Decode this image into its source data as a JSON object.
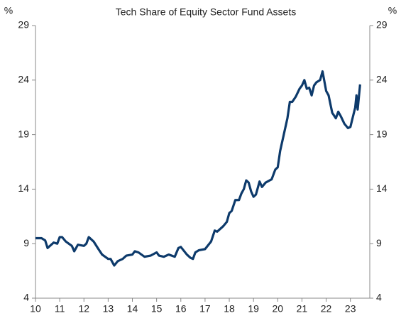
{
  "chart_data": {
    "type": "line",
    "title": "Tech Share of Equity Sector Fund Assets",
    "y_label": "%",
    "x": [
      10.0,
      10.25,
      10.4,
      10.5,
      10.75,
      10.9,
      11.0,
      11.1,
      11.25,
      11.5,
      11.6,
      11.75,
      12.0,
      12.1,
      12.2,
      12.4,
      12.6,
      12.75,
      13.0,
      13.1,
      13.25,
      13.4,
      13.6,
      13.75,
      14.0,
      14.1,
      14.25,
      14.5,
      14.75,
      15.0,
      15.1,
      15.3,
      15.5,
      15.75,
      15.9,
      16.0,
      16.25,
      16.4,
      16.5,
      16.6,
      16.75,
      17.0,
      17.25,
      17.4,
      17.5,
      17.75,
      17.9,
      18.0,
      18.1,
      18.25,
      18.4,
      18.5,
      18.6,
      18.7,
      18.8,
      18.9,
      19.0,
      19.1,
      19.25,
      19.35,
      19.5,
      19.75,
      19.9,
      20.0,
      20.1,
      20.25,
      20.4,
      20.5,
      20.6,
      20.75,
      20.9,
      21.0,
      21.1,
      21.2,
      21.3,
      21.4,
      21.5,
      21.6,
      21.75,
      21.85,
      22.0,
      22.1,
      22.25,
      22.4,
      22.5,
      22.6,
      22.75,
      22.9,
      23.0,
      23.1,
      23.2,
      23.25,
      23.3,
      23.4
    ],
    "series": [
      {
        "name": "Tech share",
        "color": "#0d3a6b",
        "values": [
          9.5,
          9.5,
          9.3,
          8.6,
          9.1,
          9.0,
          9.6,
          9.6,
          9.2,
          8.8,
          8.3,
          8.9,
          8.8,
          9.0,
          9.6,
          9.2,
          8.5,
          8.0,
          7.6,
          7.6,
          7.0,
          7.4,
          7.6,
          7.9,
          8.0,
          8.3,
          8.2,
          7.8,
          7.9,
          8.2,
          7.9,
          7.8,
          8.0,
          7.8,
          8.6,
          8.7,
          8.0,
          7.7,
          7.6,
          8.2,
          8.4,
          8.5,
          9.2,
          10.2,
          10.1,
          10.6,
          11.0,
          11.8,
          12.0,
          13.0,
          13.0,
          13.6,
          14.0,
          14.8,
          14.6,
          13.8,
          13.3,
          13.5,
          14.7,
          14.2,
          14.6,
          14.9,
          15.8,
          16.0,
          17.5,
          19.0,
          20.5,
          22.0,
          22.0,
          22.5,
          23.2,
          23.5,
          24.0,
          23.2,
          23.3,
          22.6,
          23.5,
          23.8,
          24.0,
          24.8,
          23.0,
          22.6,
          21.0,
          20.5,
          21.1,
          20.7,
          20.0,
          19.6,
          19.7,
          20.6,
          21.5,
          22.6,
          21.3,
          23.6
        ]
      }
    ],
    "xlim": [
      10,
      23.8
    ],
    "xticks": [
      10,
      11,
      12,
      13,
      14,
      15,
      16,
      17,
      18,
      19,
      20,
      21,
      22,
      23
    ],
    "ylim": [
      4,
      29
    ],
    "yticks": [
      4,
      9,
      14,
      19,
      24,
      29
    ]
  }
}
